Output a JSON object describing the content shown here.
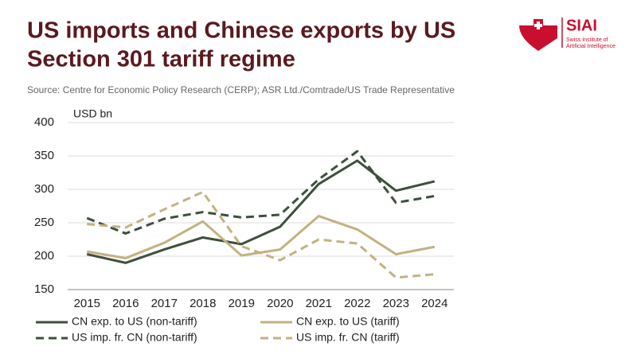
{
  "chart_data": {
    "type": "line",
    "title_lines": [
      "US imports and Chinese exports by US",
      "Section 301 tariff regime"
    ],
    "source": "Source: Centre for Economic Policy Research (CERP); ASR Ltd./Comtrade/US Trade Representative",
    "y_axis_label": "USD bn",
    "logo": {
      "name": "SIAI",
      "subtitle_lines": [
        "Swiss Institute of",
        "Artificial Intelligence"
      ]
    },
    "categories": [
      "2015",
      "2016",
      "2017",
      "2018",
      "2019",
      "2020",
      "2021",
      "2022",
      "2023",
      "2024"
    ],
    "ylim": [
      150,
      400
    ],
    "yticks": [
      150,
      200,
      250,
      300,
      350,
      400
    ],
    "grid": true,
    "series": [
      {
        "name": "CN exp. to US (non-tariff)",
        "color": "#3f4f3e",
        "dashed": false,
        "values": [
          203,
          190,
          210,
          228,
          218,
          244,
          308,
          343,
          298,
          312
        ]
      },
      {
        "name": "CN exp. to US (tariff)",
        "color": "#c2b280",
        "dashed": false,
        "values": [
          207,
          197,
          220,
          252,
          201,
          210,
          260,
          240,
          203,
          214
        ]
      },
      {
        "name": "US imp. fr. CN (non-tariff)",
        "color": "#3f4f3e",
        "dashed": true,
        "values": [
          257,
          234,
          256,
          266,
          258,
          262,
          315,
          357,
          280,
          290
        ]
      },
      {
        "name": "US imp. fr. CN (tariff)",
        "color": "#c2b280",
        "dashed": true,
        "values": [
          248,
          243,
          270,
          296,
          215,
          194,
          225,
          219,
          168,
          173
        ]
      }
    ]
  }
}
